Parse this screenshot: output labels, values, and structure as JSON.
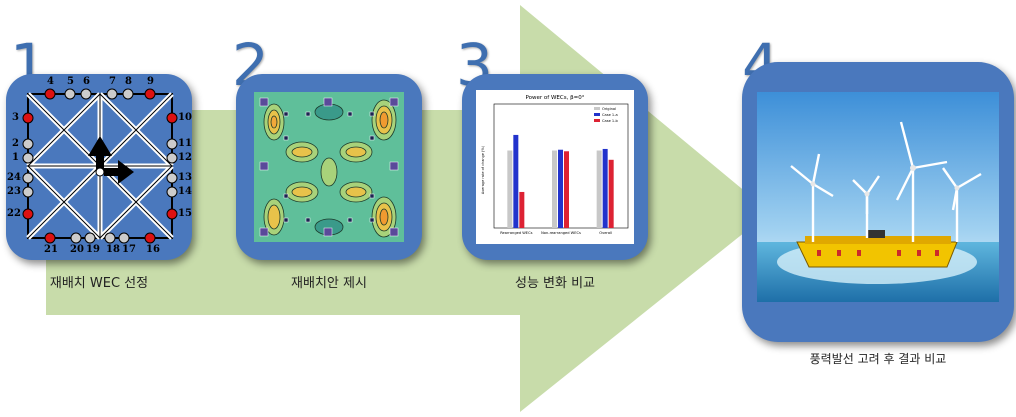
{
  "steps": [
    {
      "number": "1",
      "caption": "재배치 WEC 선정"
    },
    {
      "number": "2",
      "caption": "재배치안 제시"
    },
    {
      "number": "3",
      "caption": "성능 변화 비교"
    },
    {
      "number": "4",
      "caption": "풍력발선 고려 후 결과 비교"
    }
  ],
  "grid_labels": {
    "top": [
      "4",
      "5",
      "6",
      "7",
      "8",
      "9"
    ],
    "left": [
      "3",
      "2",
      "1",
      "24",
      "23",
      "22"
    ],
    "right": [
      "10",
      "11",
      "12",
      "13",
      "14",
      "15"
    ],
    "bottom": [
      "21",
      "20",
      "19",
      "18",
      "17",
      "16"
    ]
  },
  "chart_data": {
    "type": "bar",
    "title": "Power of WECs, β=0°",
    "ylabel": "Average rate of change (%)",
    "categories": [
      "Rearranged WECs",
      "Non-rearranged WECs",
      "Overall"
    ],
    "series": [
      {
        "name": "Original",
        "values": [
          100,
          100,
          100
        ]
      },
      {
        "name": "Case 1-a",
        "values": [
          120.1,
          101,
          102
        ]
      },
      {
        "name": "Case 1-b",
        "values": [
          46.5,
          99,
          88
        ]
      }
    ],
    "annotations": [
      "120.1",
      "46.5",
      "17.4",
      "1.1",
      "10.0",
      "17.4"
    ],
    "ylim": [
      0,
      160
    ],
    "colors": {
      "Original": "#c8c8c8",
      "Case 1-a": "#2233cc",
      "Case 1-b": "#dd2233"
    }
  },
  "colors": {
    "card": "#4a78bd",
    "arrow": "#c8dcaa",
    "number": "#3f6fb0"
  }
}
